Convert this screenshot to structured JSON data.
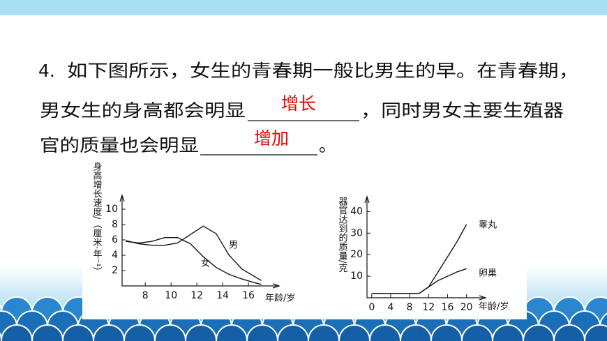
{
  "question": {
    "number": "4.",
    "line1": "如下图所示，女生的青春期一般比男生的早。在青春期，",
    "line2_before": "男女生的身高都会明显",
    "answer1": "增长",
    "line2_after": "，同时男女主要生殖器",
    "line3_before": "官的质量也会明显",
    "answer2": "增加",
    "line3_after": "。"
  },
  "chart_data": [
    {
      "type": "line",
      "y_label": "身高增长速度/（厘米·年⁻¹）",
      "x_label": "年龄/岁",
      "x": [
        6.5,
        7.5,
        8.5,
        9.5,
        10.5,
        11.5,
        12.5,
        13.5,
        14.5,
        15.5,
        16.5,
        17
      ],
      "series": [
        {
          "name": "男",
          "color": "#111111",
          "values": [
            5.9,
            5.5,
            5.3,
            5.3,
            5.6,
            6.7,
            7.8,
            6.8,
            4.0,
            2.2,
            1.2,
            0.7
          ]
        },
        {
          "name": "女",
          "color": "#111111",
          "values": [
            5.8,
            5.6,
            5.8,
            6.3,
            6.3,
            5.5,
            3.8,
            2.4,
            1.5,
            0.9,
            0.4,
            0.2
          ]
        }
      ],
      "xlim": [
        6.2,
        18
      ],
      "xticks": [
        8,
        10,
        12,
        14,
        16
      ],
      "ylim": [
        0,
        11
      ],
      "yticks": [
        2,
        4,
        6,
        8,
        10
      ]
    },
    {
      "type": "line",
      "y_label": "器官达到的质量/克",
      "x_label": "年龄/岁",
      "x": [
        0,
        2,
        4,
        6,
        8,
        10,
        12,
        14,
        16,
        18,
        20
      ],
      "series": [
        {
          "name": "睾丸",
          "color": "#111111",
          "values": [
            2,
            2,
            2,
            2,
            2,
            2,
            5,
            12,
            19,
            26,
            34
          ]
        },
        {
          "name": "卵巢",
          "color": "#111111",
          "values": [
            2,
            2,
            2,
            2,
            2,
            2,
            5,
            8,
            10,
            12,
            13.5
          ]
        }
      ],
      "xlim": [
        -1,
        23
      ],
      "xticks": [
        0,
        4,
        8,
        12,
        16,
        20
      ],
      "ylim": [
        0,
        44
      ],
      "yticks": [
        10,
        20,
        30,
        40
      ]
    }
  ]
}
